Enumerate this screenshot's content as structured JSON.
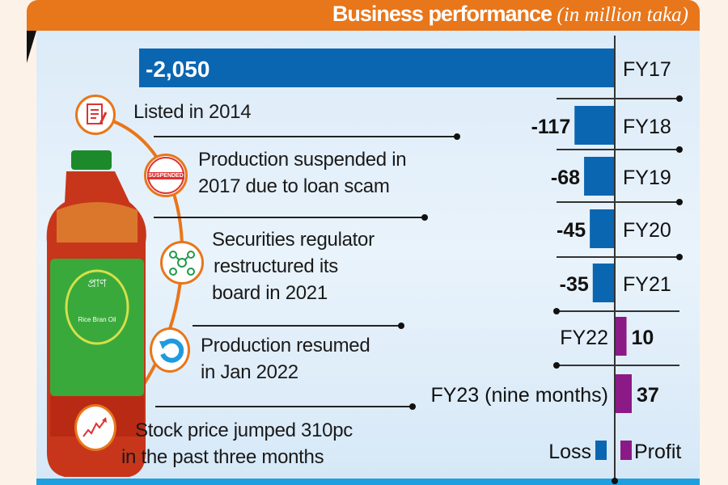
{
  "header": {
    "title": "Business performance",
    "subtitle": "(in million taka)",
    "color": "#e8761a"
  },
  "timeline": [
    {
      "icon": "document-list-icon",
      "lines": [
        "Listed in 2014"
      ]
    },
    {
      "icon": "suspended-stamp-icon",
      "stamp_text": "SUSPENDED",
      "lines": [
        "Production suspended in",
        "2017 due to loan scam"
      ]
    },
    {
      "icon": "network-people-icon",
      "lines": [
        "Securities regulator",
        "restructured its",
        "board in 2021"
      ]
    },
    {
      "icon": "refresh-arrow-icon",
      "lines": [
        "Production resumed",
        "in Jan 2022"
      ]
    },
    {
      "icon": "rising-chart-icon",
      "lines": [
        "Stock price jumped 310pc",
        "in the past three months"
      ]
    }
  ],
  "product": {
    "icon": "rice-bran-oil-bottle",
    "label": "Rice Bran Oil"
  },
  "chart_data": {
    "type": "bar",
    "orientation": "horizontal",
    "unit": "million taka",
    "categories": [
      "FY17",
      "FY18",
      "FY19",
      "FY20",
      "FY21",
      "FY22",
      "FY23 (nine months)"
    ],
    "values": [
      -2050,
      -117,
      -68,
      -45,
      -35,
      10,
      37
    ],
    "value_labels": [
      "-2,050",
      "-117",
      "-68",
      "-45",
      "-35",
      "10",
      "37"
    ],
    "scale": "non-linear (broken)",
    "colors": {
      "loss": "#0b66b2",
      "profit": "#8b1a86"
    },
    "legend": {
      "loss": "Loss",
      "profit": "Profit",
      "position": "bottom-right"
    }
  }
}
